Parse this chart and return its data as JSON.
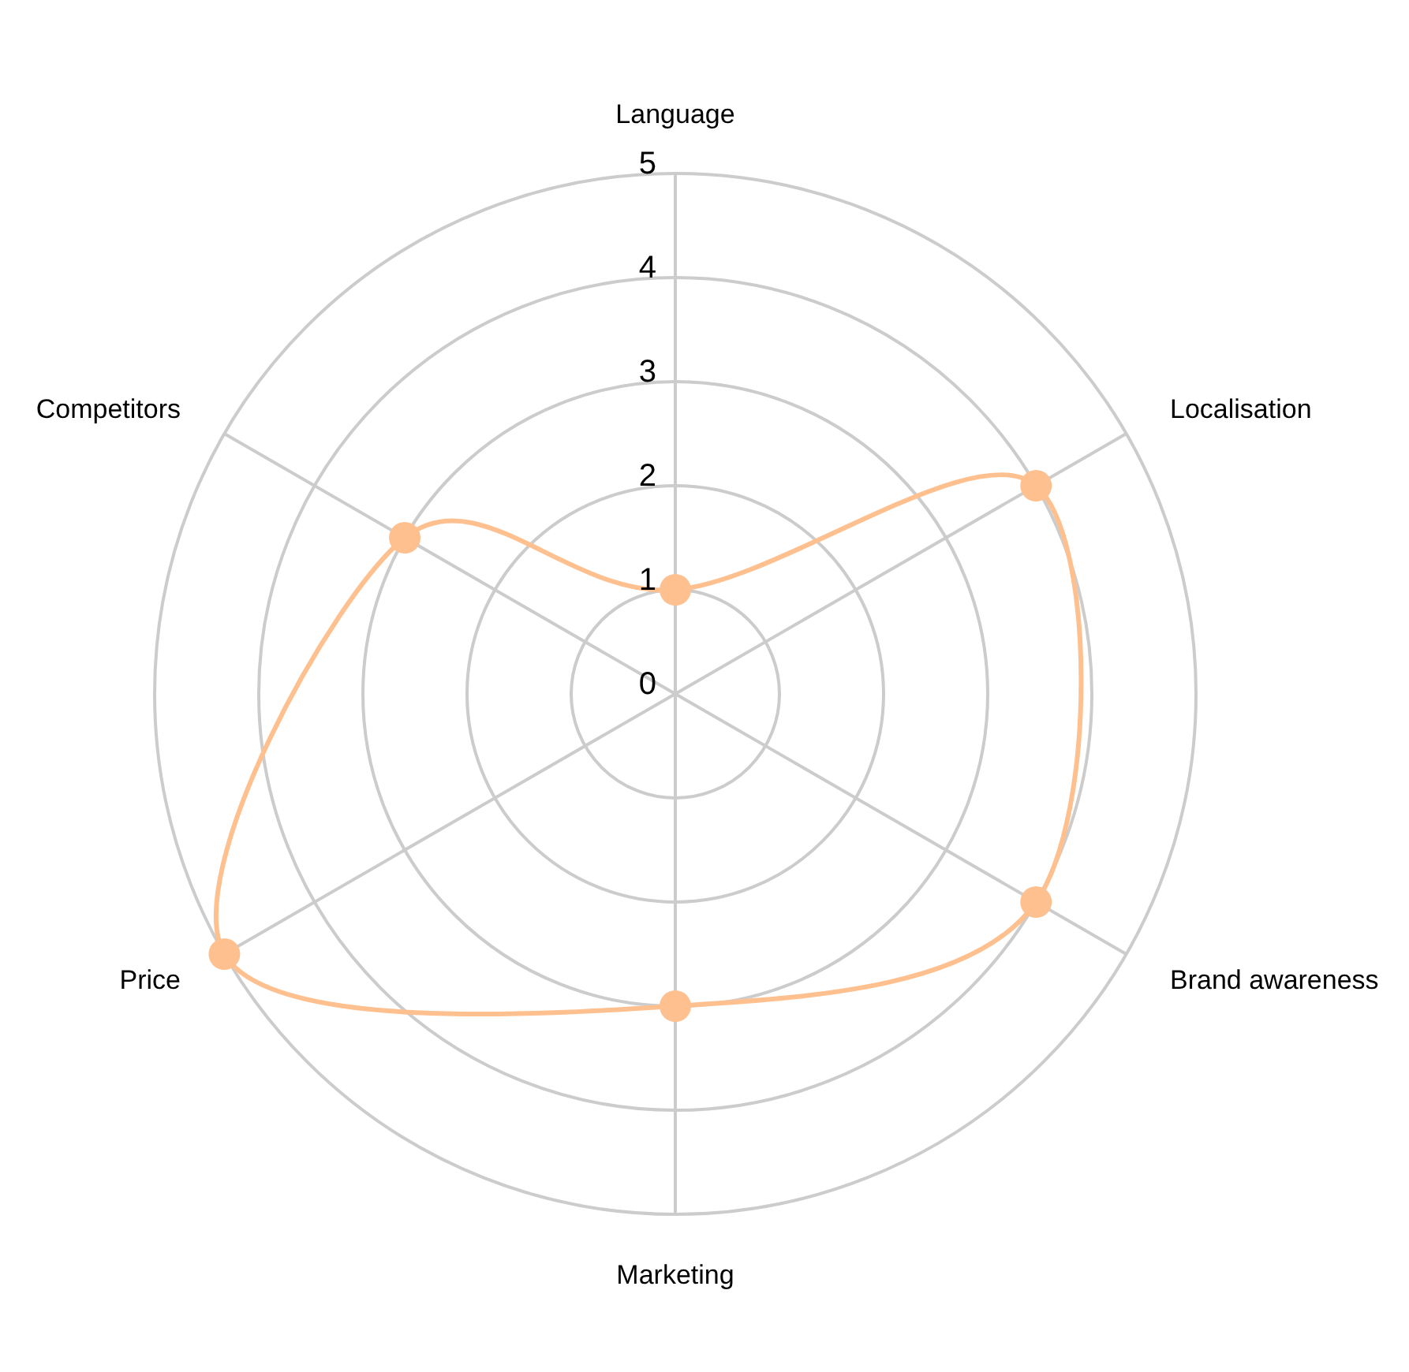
{
  "chart_data": {
    "type": "radar",
    "categories": [
      "Language",
      "Localisation",
      "Brand awareness",
      "Marketing",
      "Price",
      "Competitors"
    ],
    "series": [
      {
        "color": "#ffc08f",
        "values": [
          1,
          4,
          4,
          3,
          5,
          3
        ]
      }
    ],
    "ylim": [
      0,
      5
    ],
    "yticks": [
      0,
      1,
      2,
      3,
      4,
      5
    ],
    "grid": true,
    "marker": "circle",
    "line_style": "solid"
  }
}
